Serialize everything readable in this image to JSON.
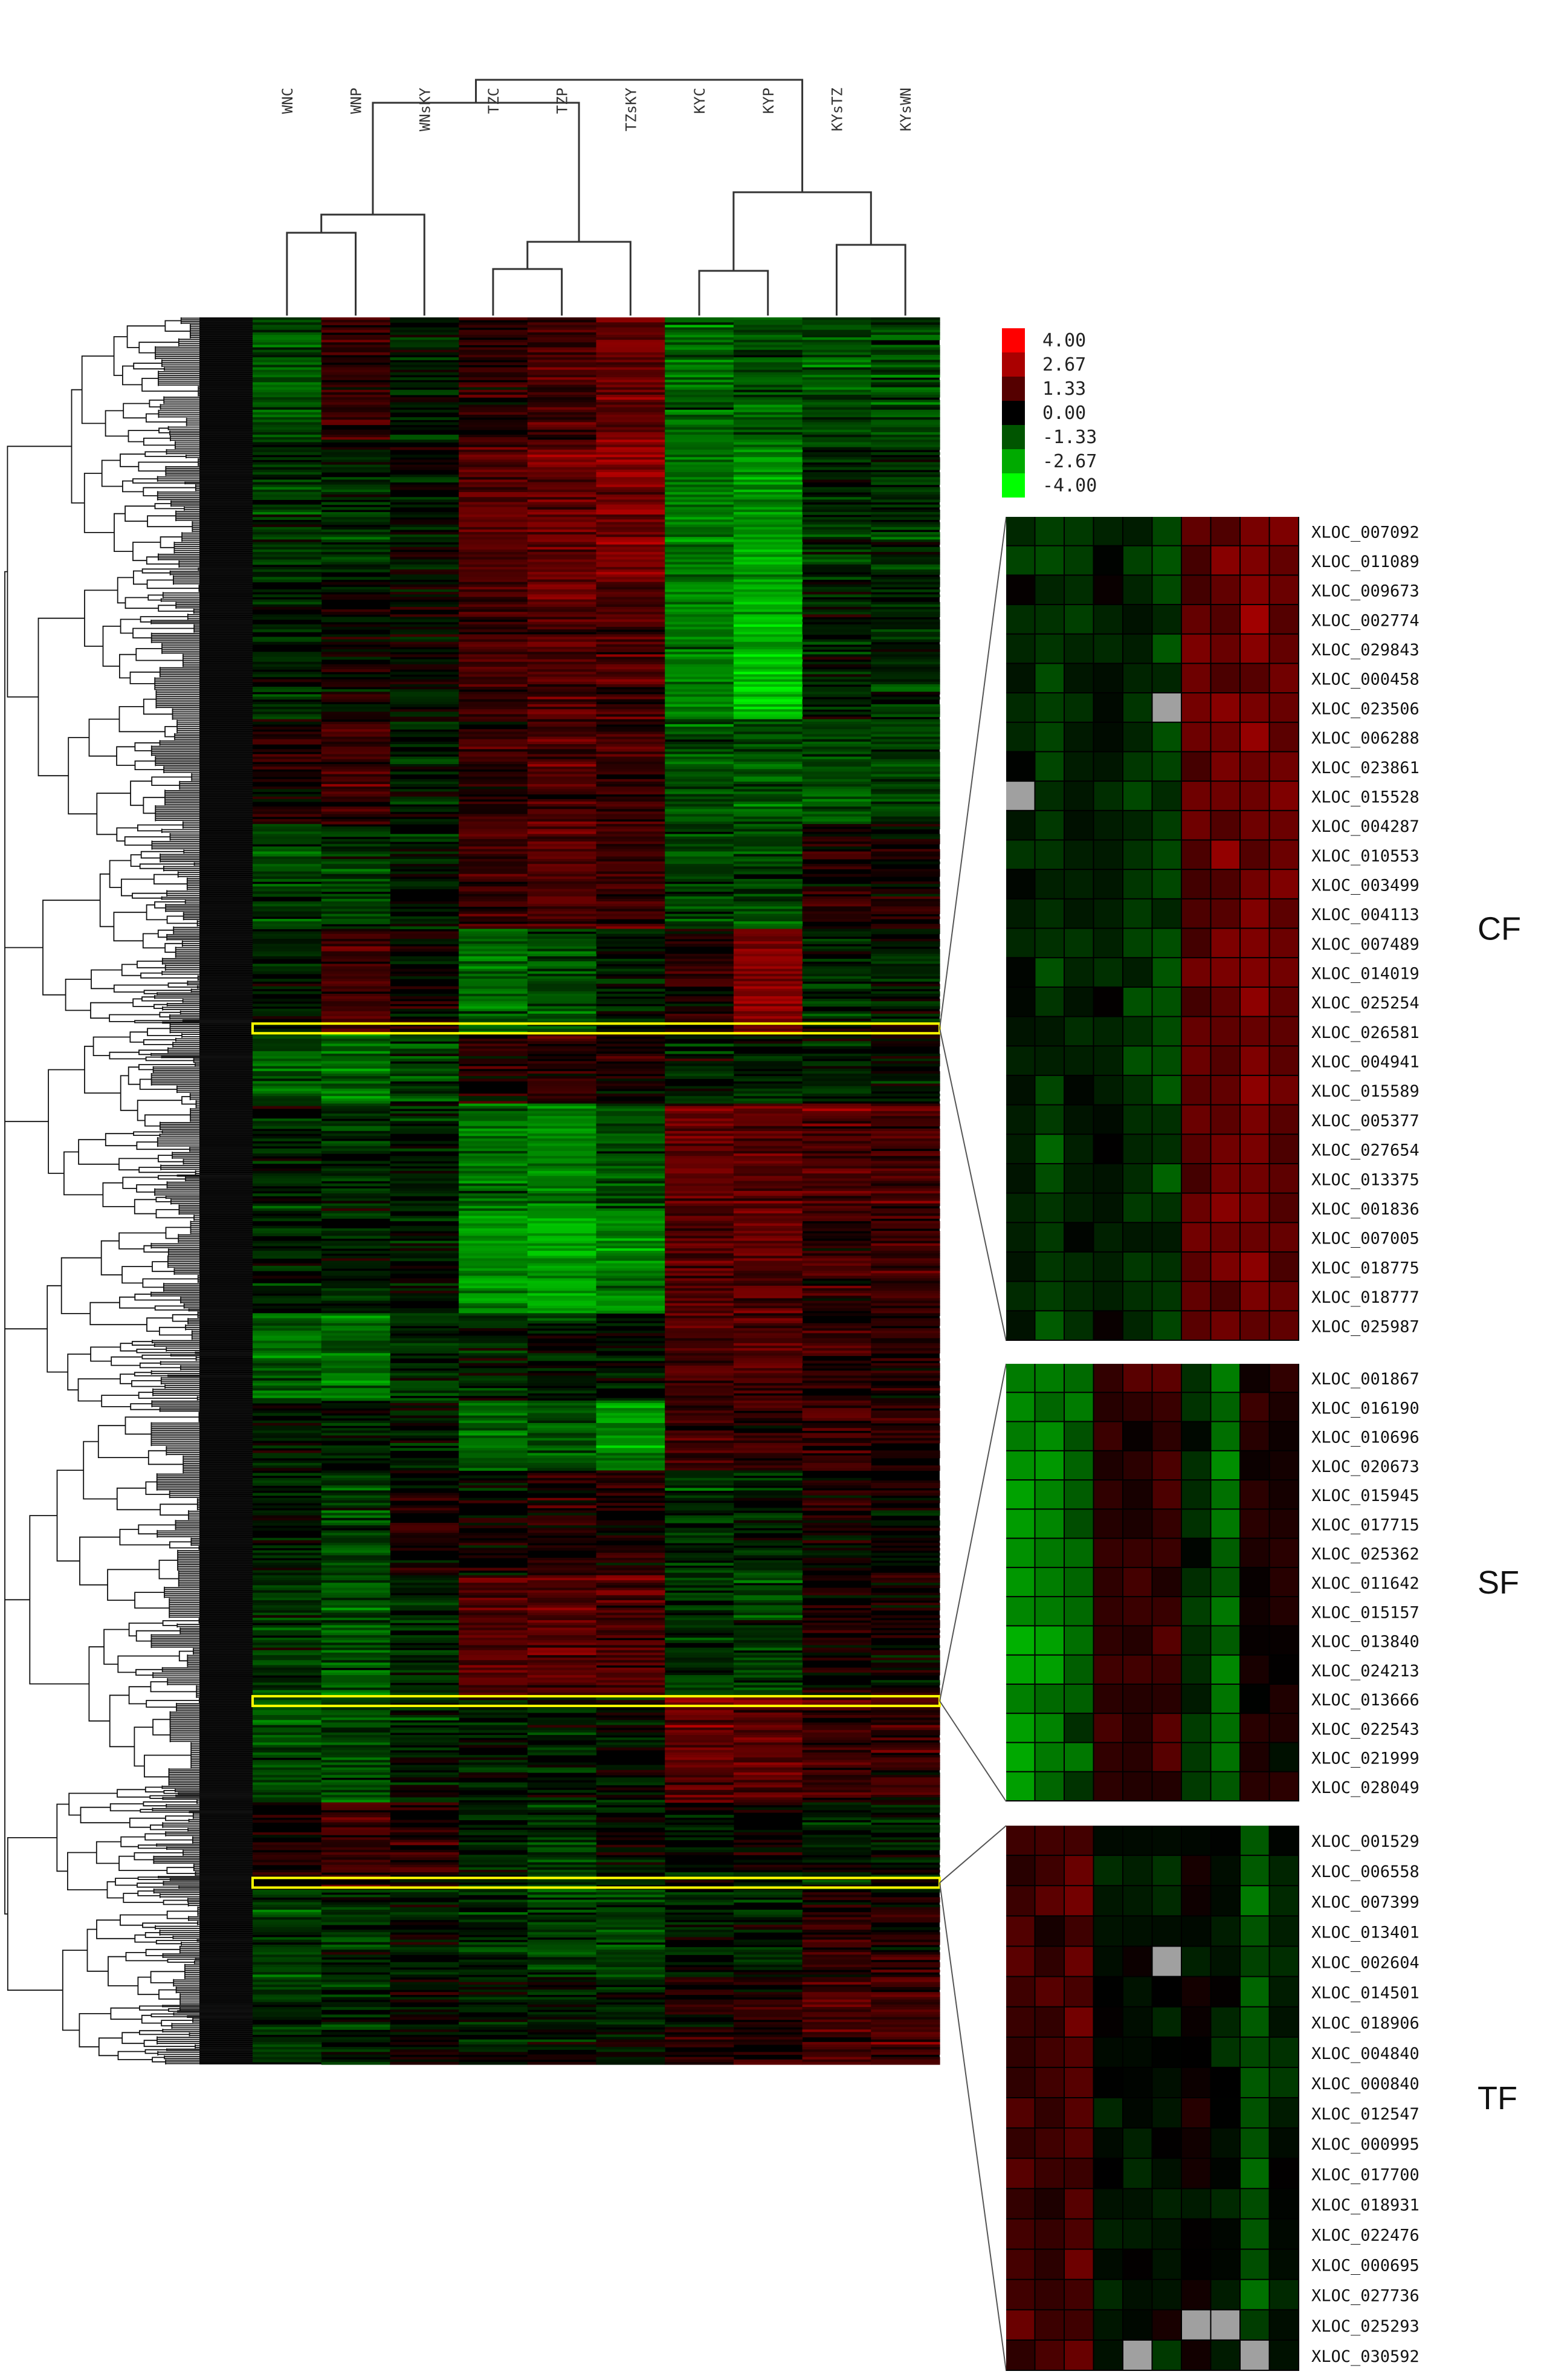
{
  "chart_data": {
    "type": "heatmap",
    "columns": [
      "WNC",
      "WNP",
      "WNsKY",
      "TZC",
      "TZP",
      "TZsKY",
      "KYC",
      "KYP",
      "KYsTZ",
      "KYsWN"
    ],
    "color_scale": {
      "ticks": [
        "4.00",
        "2.67",
        "1.33",
        "0.00",
        "-1.33",
        "-2.67",
        "-4.00"
      ],
      "high_color": "#ff0000",
      "mid_color": "#000000",
      "low_color": "#00ff00",
      "missing_color": "#a0a0a0",
      "range": [
        -4,
        4
      ]
    },
    "highlight_color": "#ffff00",
    "main_heatmap": {
      "row_count": 700,
      "cluster_blocks": [
        {
          "from": 0.0,
          "to": 0.07,
          "values": [
            -1.2,
            0.8,
            -0.3,
            0.6,
            0.9,
            1.6,
            -1.6,
            -1.3,
            -1.2,
            -1.0
          ]
        },
        {
          "from": 0.07,
          "to": 0.15,
          "values": [
            -0.7,
            -0.5,
            -0.2,
            1.3,
            1.5,
            1.9,
            -1.8,
            -2.2,
            -0.7,
            -0.6
          ]
        },
        {
          "from": 0.15,
          "to": 0.23,
          "values": [
            -0.5,
            0.2,
            0.0,
            0.9,
            1.3,
            1.1,
            -2.0,
            -2.8,
            -0.4,
            -0.5
          ]
        },
        {
          "from": 0.23,
          "to": 0.29,
          "values": [
            0.3,
            0.8,
            -0.3,
            0.7,
            1.1,
            0.8,
            -1.2,
            -1.3,
            -1.2,
            -1.0
          ]
        },
        {
          "from": 0.29,
          "to": 0.35,
          "values": [
            -1.0,
            -0.8,
            -0.3,
            1.0,
            1.3,
            0.9,
            -1.0,
            -1.1,
            0.5,
            0.2
          ]
        },
        {
          "from": 0.35,
          "to": 0.41,
          "values": [
            -0.3,
            1.0,
            0.2,
            -1.6,
            -1.1,
            -0.4,
            0.5,
            2.0,
            -0.5,
            -0.2
          ]
        },
        {
          "from": 0.41,
          "to": 0.45,
          "values": [
            -1.3,
            -1.6,
            -1.0,
            0.5,
            0.6,
            0.4,
            -0.3,
            -0.4,
            -0.5,
            -0.2
          ]
        },
        {
          "from": 0.45,
          "to": 0.51,
          "values": [
            -0.4,
            -0.5,
            -0.2,
            -1.6,
            -2.0,
            -1.2,
            1.5,
            1.4,
            1.2,
            1.0
          ]
        },
        {
          "from": 0.51,
          "to": 0.57,
          "values": [
            -0.3,
            -0.3,
            -0.1,
            -2.2,
            -2.5,
            -2.0,
            1.4,
            1.4,
            0.8,
            0.9
          ]
        },
        {
          "from": 0.57,
          "to": 0.62,
          "values": [
            -1.6,
            -1.6,
            -0.6,
            -0.4,
            -0.5,
            -0.3,
            1.1,
            1.1,
            0.5,
            0.5
          ]
        },
        {
          "from": 0.62,
          "to": 0.66,
          "values": [
            -0.3,
            -0.4,
            -0.2,
            -1.6,
            -1.4,
            -2.2,
            0.8,
            0.9,
            0.7,
            0.6
          ]
        },
        {
          "from": 0.66,
          "to": 0.72,
          "values": [
            -0.3,
            -0.8,
            0.4,
            0.2,
            0.4,
            0.5,
            -0.5,
            -0.5,
            0.3,
            0.1
          ]
        },
        {
          "from": 0.72,
          "to": 0.79,
          "values": [
            -0.8,
            -1.3,
            -0.5,
            1.3,
            1.4,
            1.2,
            -0.8,
            -0.9,
            0.3,
            0.1
          ]
        },
        {
          "from": 0.79,
          "to": 0.85,
          "values": [
            -1.0,
            -0.9,
            -0.4,
            -0.4,
            -0.3,
            -0.2,
            1.5,
            1.4,
            0.9,
            0.8
          ]
        },
        {
          "from": 0.85,
          "to": 0.9,
          "values": [
            0.4,
            1.0,
            0.6,
            -0.4,
            -0.6,
            -0.2,
            -0.1,
            0.0,
            -0.3,
            -0.2
          ]
        },
        {
          "from": 0.9,
          "to": 0.95,
          "values": [
            -0.8,
            -0.6,
            -0.2,
            -0.5,
            -0.9,
            -1.1,
            -0.3,
            -0.4,
            0.6,
            0.4
          ]
        },
        {
          "from": 0.95,
          "to": 1.0,
          "values": [
            -0.6,
            -0.5,
            0.0,
            -0.3,
            -0.2,
            -0.2,
            0.4,
            0.5,
            1.1,
            1.0
          ]
        }
      ],
      "highlighted_rows": [
        0.407,
        0.792,
        0.896
      ]
    },
    "panels": [
      {
        "label": "CF",
        "genes": [
          "XLOC_007092",
          "XLOC_011089",
          "XLOC_009673",
          "XLOC_002774",
          "XLOC_029843",
          "XLOC_000458",
          "XLOC_023506",
          "XLOC_006288",
          "XLOC_023861",
          "XLOC_015528",
          "XLOC_004287",
          "XLOC_010553",
          "XLOC_003499",
          "XLOC_004113",
          "XLOC_007489",
          "XLOC_014019",
          "XLOC_025254",
          "XLOC_026581",
          "XLOC_004941",
          "XLOC_015589",
          "XLOC_005377",
          "XLOC_027654",
          "XLOC_013375",
          "XLOC_001836",
          "XLOC_007005",
          "XLOC_018775",
          "XLOC_018777",
          "XLOC_025987"
        ],
        "profile": [
          -0.4,
          -0.9,
          -0.5,
          -0.3,
          -0.8,
          -1.0,
          1.5,
          1.7,
          1.9,
          1.6
        ],
        "missing": [
          [
            6,
            5
          ],
          [
            9,
            0
          ]
        ]
      },
      {
        "label": "SF",
        "genes": [
          "XLOC_001867",
          "XLOC_016190",
          "XLOC_010696",
          "XLOC_020673",
          "XLOC_015945",
          "XLOC_017715",
          "XLOC_025362",
          "XLOC_011642",
          "XLOC_015157",
          "XLOC_013840",
          "XLOC_024213",
          "XLOC_013666",
          "XLOC_022543",
          "XLOC_021999",
          "XLOC_028049"
        ],
        "profile": [
          -2.4,
          -2.1,
          -1.4,
          0.8,
          0.8,
          0.8,
          -0.6,
          -1.8,
          0.4,
          0.5
        ],
        "missing": []
      },
      {
        "label": "TF",
        "genes": [
          "XLOC_001529",
          "XLOC_006558",
          "XLOC_007399",
          "XLOC_013401",
          "XLOC_002604",
          "XLOC_014501",
          "XLOC_018906",
          "XLOC_004840",
          "XLOC_000840",
          "XLOC_012547",
          "XLOC_000995",
          "XLOC_017700",
          "XLOC_018931",
          "XLOC_022476",
          "XLOC_000695",
          "XLOC_027736",
          "XLOC_025293",
          "XLOC_030592"
        ],
        "profile": [
          1.0,
          0.7,
          1.3,
          -0.2,
          -0.3,
          -0.4,
          0.1,
          -0.2,
          -1.3,
          -0.4
        ],
        "missing": [
          [
            4,
            5
          ],
          [
            16,
            6
          ],
          [
            16,
            7
          ],
          [
            17,
            4
          ],
          [
            17,
            8
          ]
        ]
      }
    ]
  }
}
